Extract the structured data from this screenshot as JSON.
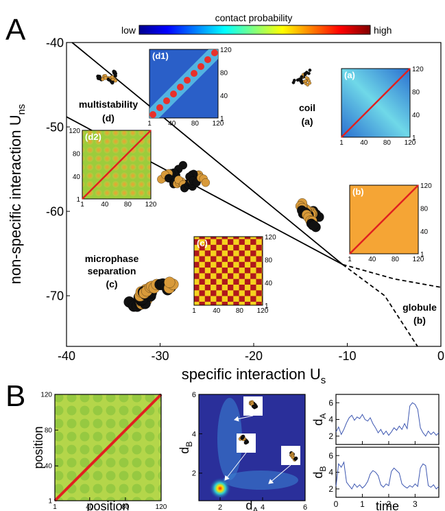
{
  "chart_data": [
    {
      "type": "line",
      "panel": "A",
      "title": "contact probability",
      "colorbar_low": "low",
      "colorbar_high": "high",
      "x_label": "specific interaction U",
      "x_label_sub": "s",
      "y_label": "non-specific interaction U",
      "y_label_sub": "ns",
      "xlim": [
        -40,
        0
      ],
      "ylim": [
        -76,
        -40
      ],
      "xticks": [
        -40,
        -30,
        -20,
        -10,
        0
      ],
      "yticks": [
        -40,
        -50,
        -60,
        -70
      ],
      "series": [
        {
          "color": "#000000",
          "dashed": false,
          "x": [
            -39.4,
            -10.5
          ],
          "values": [
            -40,
            -66.3
          ]
        },
        {
          "color": "#000000",
          "dashed": false,
          "x": [
            -40,
            -10.5
          ],
          "values": [
            -48.8,
            -66.3
          ]
        },
        {
          "color": "#000000",
          "dashed": true,
          "x": [
            -10.5,
            -5,
            0
          ],
          "values": [
            -66.3,
            -68,
            -69
          ]
        },
        {
          "color": "#000000",
          "dashed": true,
          "x": [
            -10.5,
            -6,
            -2.5
          ],
          "values": [
            -66.3,
            -70,
            -76
          ]
        }
      ],
      "annotations": [
        "multistability",
        "(d)",
        "coil",
        "(a)",
        "microphase",
        "separation",
        "(c)",
        "globule",
        "(b)"
      ],
      "insets": [
        "(d1)",
        "(a)",
        "(d2)",
        "(b)",
        "(c)"
      ],
      "inset_ticks": [
        1,
        40,
        80,
        120
      ]
    },
    {
      "type": "heatmap",
      "panel": "B",
      "x_label": "position",
      "y_label": "position",
      "xlim": [
        1,
        120
      ],
      "ylim": [
        1,
        120
      ],
      "xticks": [
        1,
        40,
        80,
        120
      ],
      "yticks": [
        1,
        40,
        80,
        120
      ]
    },
    {
      "type": "density",
      "x_label": "d",
      "x_label_sub": "A",
      "y_label": "d",
      "y_label_sub": "B",
      "xlim": [
        1,
        6
      ],
      "ylim": [
        0.6,
        6
      ],
      "xticks": [
        2,
        4,
        6
      ],
      "yticks": [
        2,
        4,
        6
      ]
    },
    {
      "type": "line",
      "y_label": "d",
      "y_label_sub": "A",
      "xlim": [
        0,
        3.9
      ],
      "ylim": [
        1,
        7
      ],
      "xticks": [
        0,
        1,
        2,
        3
      ],
      "yticks": [
        2,
        4,
        6
      ],
      "series": [
        {
          "color": "#3b55b0",
          "dashed": false,
          "x": [
            0,
            0.1,
            0.2,
            0.3,
            0.4,
            0.5,
            0.6,
            0.7,
            0.8,
            0.9,
            1,
            1.1,
            1.2,
            1.3,
            1.4,
            1.5,
            1.6,
            1.7,
            1.8,
            1.9,
            2,
            2.1,
            2.2,
            2.3,
            2.4,
            2.5,
            2.6,
            2.7,
            2.8,
            2.9,
            3,
            3.1,
            3.2,
            3.3,
            3.4,
            3.5,
            3.6,
            3.7,
            3.8,
            3.9
          ],
          "values": [
            2.5,
            3.1,
            2.2,
            2.8,
            3.6,
            4.2,
            4.5,
            3.9,
            4.3,
            4.1,
            4.6,
            4.0,
            3.8,
            4.2,
            3.5,
            3.0,
            2.4,
            2.8,
            2.2,
            2.6,
            2.1,
            2.5,
            3.0,
            2.7,
            3.2,
            2.8,
            3.5,
            2.9,
            5.6,
            6.0,
            5.8,
            5.2,
            3.0,
            2.4,
            2.0,
            2.6,
            2.2,
            2.5,
            2.1,
            2.4
          ]
        }
      ]
    },
    {
      "type": "line",
      "x_label": "time",
      "y_label": "d",
      "y_label_sub": "B",
      "xlim": [
        0,
        3.9
      ],
      "ylim": [
        1,
        7
      ],
      "xticks": [
        0,
        1,
        2,
        3
      ],
      "yticks": [
        2,
        4,
        6
      ],
      "series": [
        {
          "color": "#3b55b0",
          "dashed": false,
          "x": [
            0,
            0.1,
            0.2,
            0.3,
            0.4,
            0.5,
            0.6,
            0.7,
            0.8,
            0.9,
            1,
            1.1,
            1.2,
            1.3,
            1.4,
            1.5,
            1.6,
            1.7,
            1.8,
            1.9,
            2,
            2.1,
            2.2,
            2.3,
            2.4,
            2.5,
            2.6,
            2.7,
            2.8,
            2.9,
            3,
            3.1,
            3.2,
            3.3,
            3.4,
            3.5,
            3.6,
            3.7,
            3.8,
            3.9
          ],
          "values": [
            2.3,
            5.0,
            4.6,
            5.2,
            2.8,
            2.4,
            2.0,
            2.6,
            2.2,
            2.5,
            2.1,
            2.4,
            2.9,
            3.8,
            4.2,
            4.0,
            3.6,
            2.5,
            2.2,
            2.6,
            2.4,
            4.1,
            4.5,
            4.2,
            3.9,
            2.6,
            2.3,
            2.1,
            2.4,
            2.2,
            2.6,
            2.3,
            4.5,
            5.0,
            4.8,
            2.4,
            2.2,
            2.5,
            2.0,
            2.3
          ]
        }
      ]
    }
  ]
}
